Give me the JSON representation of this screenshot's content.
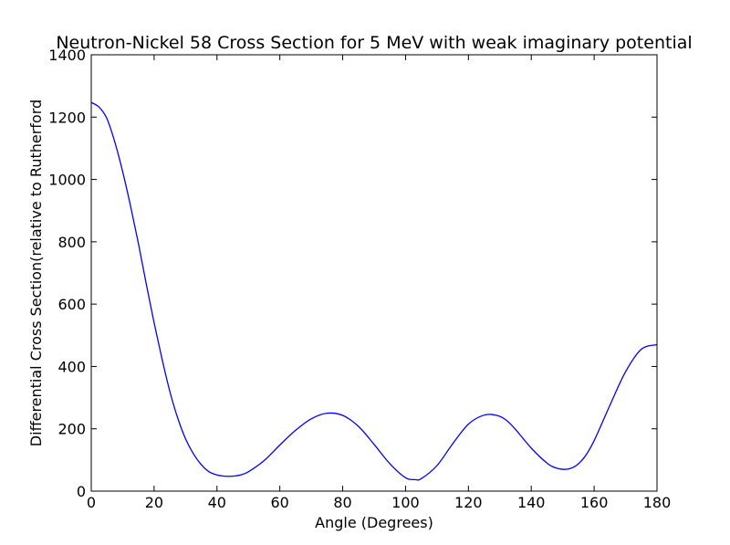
{
  "chart_data": {
    "type": "line",
    "title": "Neutron-Nickel 58 Cross Section for 5 MeV with weak imaginary potential",
    "xlabel": "Angle (Degrees)",
    "ylabel": "Differential Cross Section(relative to Rutherford",
    "xlim": [
      0,
      180
    ],
    "ylim": [
      0,
      1400
    ],
    "xticks": [
      0,
      20,
      40,
      60,
      80,
      100,
      120,
      140,
      160,
      180
    ],
    "yticks": [
      0,
      200,
      400,
      600,
      800,
      1000,
      1200,
      1400
    ],
    "grid": false,
    "line_color": "#0000ff",
    "series": [
      {
        "x": [
          0,
          2.5,
          5,
          7.5,
          10,
          12.5,
          15,
          17.5,
          20,
          22.5,
          25,
          27.5,
          30,
          32.5,
          35,
          37.5,
          40,
          42.5,
          45,
          47.5,
          50,
          55,
          60,
          65,
          70,
          75,
          80,
          85,
          90,
          95,
          100,
          103,
          105,
          110,
          115,
          120,
          125,
          129,
          132,
          135,
          140,
          145,
          148,
          151,
          154,
          157,
          160,
          165,
          170,
          175,
          180
        ],
        "values": [
          1247,
          1232,
          1195,
          1120,
          1025,
          915,
          795,
          665,
          540,
          425,
          320,
          235,
          168,
          120,
          85,
          62,
          52,
          48,
          48,
          52,
          62,
          98,
          148,
          195,
          232,
          250,
          243,
          208,
          150,
          88,
          43,
          37,
          40,
          82,
          152,
          215,
          244,
          243,
          228,
          198,
          138,
          90,
          74,
          70,
          80,
          110,
          162,
          275,
          383,
          455,
          470
        ]
      }
    ]
  }
}
